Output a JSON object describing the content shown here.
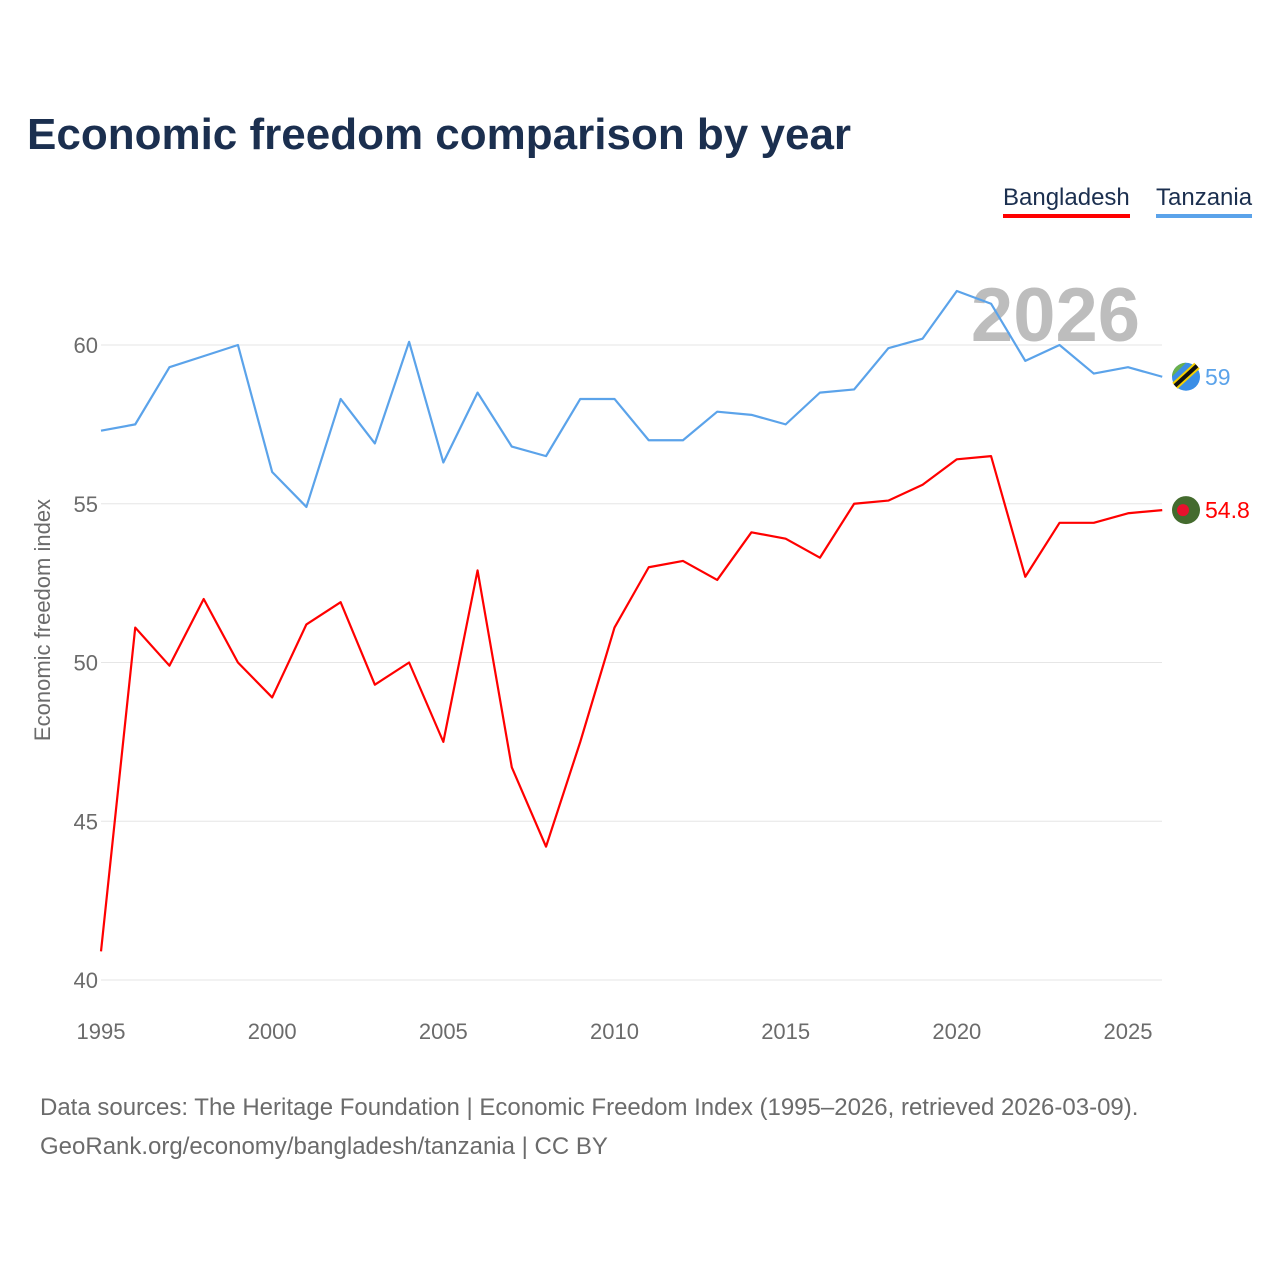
{
  "chart_data": {
    "type": "line",
    "title": "Economic freedom comparison by year",
    "xlabel": "",
    "ylabel": "Economic freedom index",
    "x": [
      1995,
      1996,
      1997,
      1998,
      1999,
      2000,
      2001,
      2002,
      2003,
      2004,
      2005,
      2006,
      2007,
      2008,
      2009,
      2010,
      2011,
      2012,
      2013,
      2014,
      2015,
      2016,
      2017,
      2018,
      2019,
      2020,
      2021,
      2022,
      2023,
      2024,
      2025,
      2026
    ],
    "xlim": [
      1995,
      2026
    ],
    "ylim": [
      40,
      62
    ],
    "xticks": [
      "1995",
      "2000",
      "2005",
      "2010",
      "2015",
      "2020",
      "2025"
    ],
    "yticks": [
      "40",
      "45",
      "50",
      "55",
      "60"
    ],
    "grid": true,
    "legend_placement": "top-right",
    "year_watermark": "2026",
    "series": [
      {
        "name": "Bangladesh",
        "color": "#ff0000",
        "end_label": "54.8",
        "values": [
          40.9,
          51.1,
          49.9,
          52.0,
          50.0,
          48.9,
          51.2,
          51.9,
          49.3,
          50.0,
          47.5,
          52.9,
          46.7,
          44.2,
          47.5,
          51.1,
          53.0,
          53.2,
          52.6,
          54.1,
          53.9,
          53.3,
          55.0,
          55.1,
          55.6,
          56.4,
          56.5,
          52.7,
          54.4,
          54.4,
          54.7,
          54.8
        ]
      },
      {
        "name": "Tanzania",
        "color": "#5ba3ea",
        "end_label": "59",
        "values": [
          57.3,
          57.5,
          59.3,
          59.65,
          60.0,
          56.0,
          54.9,
          58.3,
          56.9,
          60.1,
          56.3,
          58.5,
          56.8,
          56.5,
          58.3,
          58.3,
          57.0,
          57.0,
          57.9,
          57.8,
          57.5,
          58.5,
          58.6,
          59.9,
          60.2,
          61.7,
          61.3,
          59.5,
          60.0,
          59.1,
          59.3,
          59.0
        ]
      }
    ]
  },
  "footer": {
    "line1": "Data sources: The Heritage Foundation | Economic Freedom Index (1995–2026, retrieved 2026-03-09).",
    "line2": "GeoRank.org/economy/bangladesh/tanzania | CC BY"
  }
}
